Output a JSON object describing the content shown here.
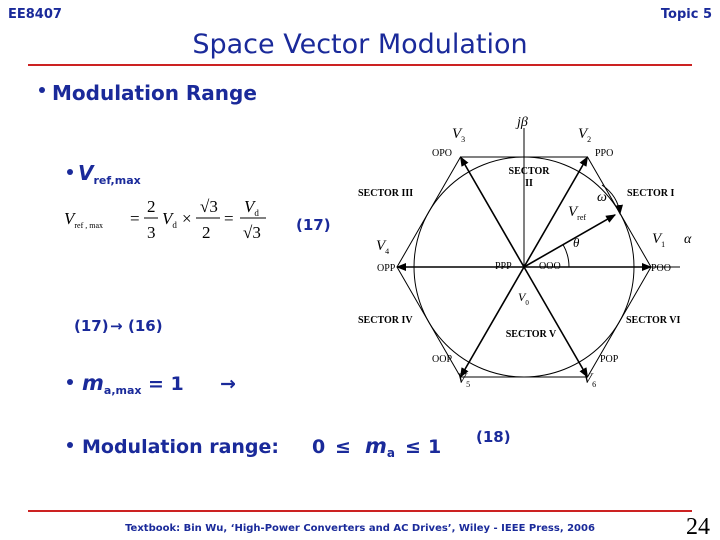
{
  "header": {
    "course": "EE8407",
    "topic": "Topic 5",
    "title": "Space Vector Modulation"
  },
  "heading": "Modulation Range",
  "vref_bullet": {
    "symbol": "V",
    "sub": "ref,max"
  },
  "equation": {
    "lhs": {
      "symbol": "V",
      "sub": "ref , max"
    },
    "eq1": "=",
    "frac1": {
      "num": "2",
      "den": "3"
    },
    "vd": {
      "symbol": "V",
      "sub": "d"
    },
    "times": "×",
    "frac2": {
      "num": "√3",
      "den": "2"
    },
    "eq2": "=",
    "frac3": {
      "num": {
        "symbol": "V",
        "sub": "d"
      },
      "den": "√3"
    },
    "number": "(17)"
  },
  "arrow_note": {
    "from": "(17)",
    "arrow": "→",
    "to": "(16)"
  },
  "ma_bullet": {
    "symbol": "m",
    "sub": "a,max",
    "rest": "= 1",
    "arrow": "→"
  },
  "range_bullet": {
    "label": "Modulation range:",
    "low": "0",
    "le1": "≤",
    "symbol": "m",
    "sub": "a",
    "le2": "≤",
    "high": "1",
    "number": "(18)"
  },
  "diagram": {
    "vectors": [
      {
        "symbol": "V",
        "sub": "1",
        "state": "POO"
      },
      {
        "symbol": "V",
        "sub": "2",
        "state": "PPO"
      },
      {
        "symbol": "V",
        "sub": "3",
        "state": "OPO"
      },
      {
        "symbol": "V",
        "sub": "4",
        "state": "OPP"
      },
      {
        "symbol": "V",
        "sub": "5",
        "state": "OOP"
      },
      {
        "symbol": "V",
        "sub": "6",
        "state": "POP"
      }
    ],
    "sectors": [
      [
        "SECTOR I"
      ],
      [
        "SECTOR",
        "II"
      ],
      [
        "SECTOR III"
      ],
      [
        "SECTOR IV"
      ],
      [
        "SECTOR V"
      ],
      [
        "SECTOR VI"
      ]
    ],
    "zero": {
      "symbol": "V",
      "sub": "0",
      "states": [
        "PPP",
        "OOO"
      ]
    },
    "vref": {
      "symbol": "V",
      "sub": "ref"
    },
    "omega": "ω",
    "theta": "θ",
    "beta_axis": "jβ",
    "alpha_axis": "α"
  },
  "footer": {
    "source": "Textbook: Bin Wu, ‘High-Power Converters and AC Drives’, Wiley - IEEE Press, 2006",
    "page": "24"
  }
}
